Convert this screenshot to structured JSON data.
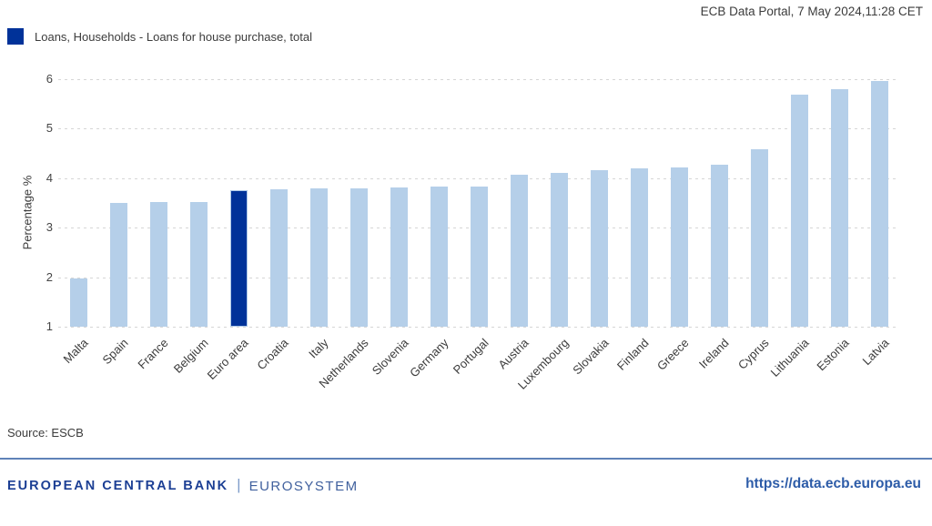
{
  "header": {
    "timestamp": "ECB Data Portal, 7 May 2024,11:28 CET"
  },
  "legend": {
    "label": "Loans, Households - Loans for house purchase, total",
    "swatch_color": "#003299"
  },
  "chart_data": {
    "type": "bar",
    "title": "",
    "xlabel": "",
    "ylabel": "Percentage %",
    "categories": [
      "Malta",
      "Spain",
      "France",
      "Belgium",
      "Euro area",
      "Croatia",
      "Italy",
      "Netherlands",
      "Slovenia",
      "Germany",
      "Portugal",
      "Austria",
      "Luxembourg",
      "Slovakia",
      "Finland",
      "Greece",
      "Ireland",
      "Cyprus",
      "Lithuania",
      "Estonia",
      "Latvia"
    ],
    "values": [
      1.97,
      3.49,
      3.51,
      3.52,
      3.76,
      3.77,
      3.78,
      3.79,
      3.81,
      3.82,
      3.83,
      4.07,
      4.1,
      4.16,
      4.2,
      4.22,
      4.26,
      4.58,
      5.67,
      5.78,
      5.95
    ],
    "highlight_category": "Euro area",
    "bar_color": "#b5cfe9",
    "highlight_color": "#003299",
    "ylim": [
      1,
      6.3
    ],
    "yticks": [
      1,
      2,
      3,
      4,
      5,
      6
    ],
    "grid": "horizontal-dotted",
    "legend_position": "top-left",
    "x_tick_rotation": 45
  },
  "source": {
    "text": "Source: ESCB"
  },
  "footer": {
    "wordmark_bold": "EUROPEAN CENTRAL BANK",
    "wordmark_separator": "|",
    "wordmark_light": "EUROSYSTEM",
    "url": "https://data.ecb.europa.eu"
  }
}
